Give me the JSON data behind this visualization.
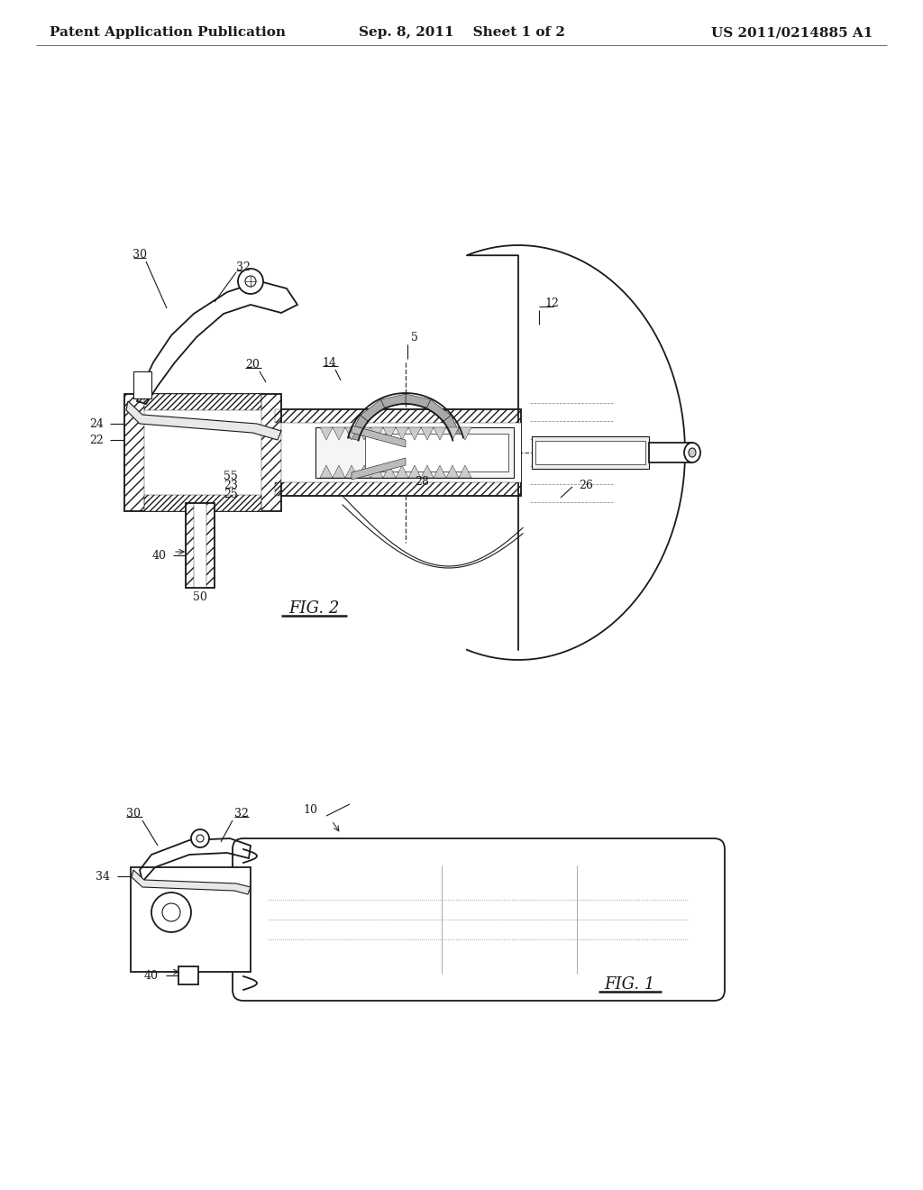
{
  "background_color": "#ffffff",
  "line_color": "#1a1a1a",
  "header_left": "Patent Application Publication",
  "header_center": "Sep. 8, 2011    Sheet 1 of 2",
  "header_right": "US 2011/0214885 A1",
  "fig1_label": "FIG. 1",
  "fig2_label": "FIG. 2",
  "label_fontsize": 9,
  "header_fontsize": 11
}
